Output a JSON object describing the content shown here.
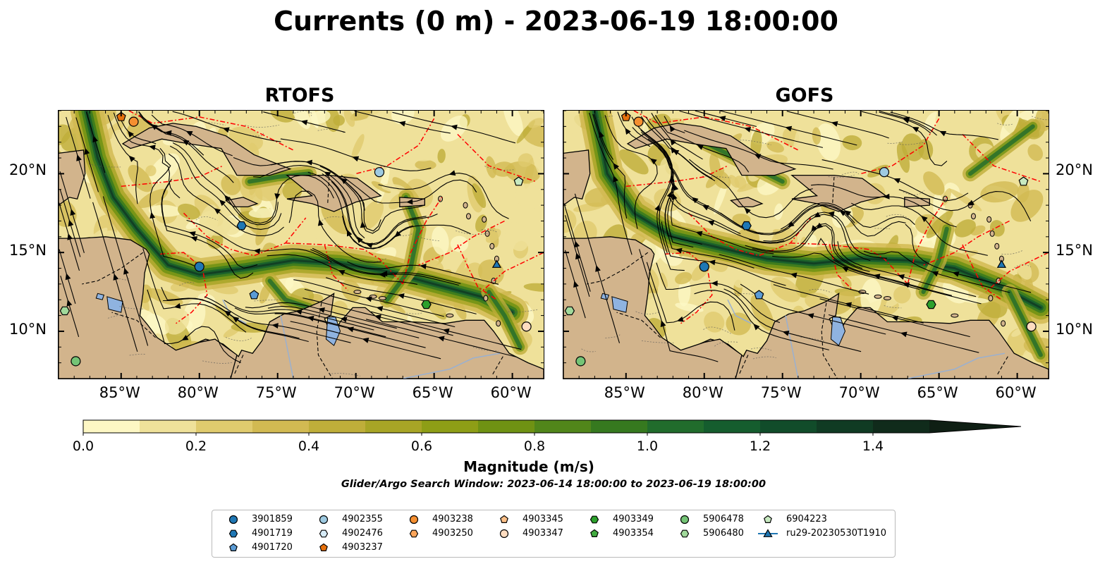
{
  "title": "Currents (0 m) - 2023-06-19 18:00:00",
  "panels": [
    {
      "title": "RTOFS"
    },
    {
      "title": "GOFS"
    }
  ],
  "lon_ticks": [
    "85°W",
    "80°W",
    "75°W",
    "70°W",
    "65°W",
    "60°W"
  ],
  "lat_ticks": [
    "20°N",
    "15°N",
    "10°N"
  ],
  "colorbar": {
    "label": "Magnitude (m/s)",
    "range": [
      0.0,
      1.5
    ],
    "extend": "max",
    "ticks": [
      "0.0",
      "0.2",
      "0.4",
      "0.6",
      "0.8",
      "1.0",
      "1.2",
      "1.4"
    ],
    "colors": [
      "#fdf7c4",
      "#efe19a",
      "#e0cb6e",
      "#d2ba52",
      "#bfae3a",
      "#a8a526",
      "#8e9e16",
      "#6f9213",
      "#51861a",
      "#36791f",
      "#216c2c",
      "#155d2e",
      "#114c2a",
      "#103b23",
      "#102b1b",
      "#0f1f14"
    ]
  },
  "search_window": "Glider/Argo Search Window: 2023-06-14 18:00:00 to 2023-06-19 18:00:00",
  "map_colors": {
    "land": "#d2b48c",
    "lake": "#8fb3e0",
    "eez": "#ff0000",
    "streamline": "#000000"
  },
  "legend": [
    {
      "label": "3901859",
      "marker": "circle",
      "color": "#1f77b4"
    },
    {
      "label": "4901719",
      "marker": "hexagon",
      "color": "#1f77b4"
    },
    {
      "label": "4901720",
      "marker": "pentagon",
      "color": "#5b9bd5"
    },
    {
      "label": "4902355",
      "marker": "circle",
      "color": "#9ecae1"
    },
    {
      "label": "4902476",
      "marker": "hexagon",
      "color": "#d6ebf7"
    },
    {
      "label": "4903237",
      "marker": "pentagon",
      "color": "#e6700c"
    },
    {
      "label": "4903238",
      "marker": "circle",
      "color": "#f58f30"
    },
    {
      "label": "4903250",
      "marker": "hexagon",
      "color": "#fba55a"
    },
    {
      "label": "4903345",
      "marker": "pentagon",
      "color": "#fdc088"
    },
    {
      "label": "4903347",
      "marker": "circle",
      "color": "#fedcc0"
    },
    {
      "label": "4903349",
      "marker": "hexagon",
      "color": "#2ca02c"
    },
    {
      "label": "4903354",
      "marker": "pentagon",
      "color": "#41ab3f"
    },
    {
      "label": "5906478",
      "marker": "circle",
      "color": "#74c476"
    },
    {
      "label": "5906480",
      "marker": "hexagon",
      "color": "#a1d99b"
    },
    {
      "label": "6904223",
      "marker": "pentagon",
      "color": "#c7e9c0"
    },
    {
      "label": "ru29-20230530T1910",
      "marker": "triangle-line",
      "color": "#1f77b4"
    }
  ],
  "floats": [
    {
      "id": "3901859",
      "lon": -80.0,
      "lat": 14.1
    },
    {
      "id": "4901719",
      "lon": -77.3,
      "lat": 16.7
    },
    {
      "id": "4901720",
      "lon": -76.5,
      "lat": 12.3
    },
    {
      "id": "4902355",
      "lon": -68.5,
      "lat": 20.1
    },
    {
      "id": "4903237",
      "lon": -85.0,
      "lat": 23.6
    },
    {
      "id": "4903238",
      "lon": -84.2,
      "lat": 23.3
    },
    {
      "id": "4903349",
      "lon": -65.5,
      "lat": 11.7
    },
    {
      "id": "4903347",
      "lon": -59.1,
      "lat": 10.3
    },
    {
      "id": "5906478",
      "lon": -87.9,
      "lat": 8.1
    },
    {
      "id": "5906480",
      "lon": -88.6,
      "lat": 11.3
    },
    {
      "id": "6904223",
      "lon": -59.6,
      "lat": 19.5
    },
    {
      "id": "ru29-20230530T1910",
      "lon": -61.0,
      "lat": 14.2
    }
  ]
}
